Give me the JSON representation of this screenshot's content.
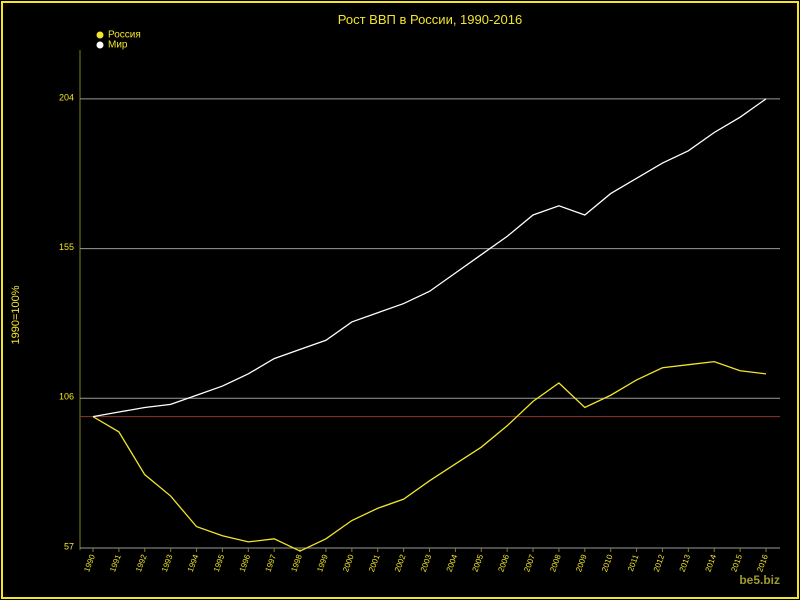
{
  "chart_data": {
    "type": "line",
    "title": "Рост ВВП в России, 1990-2016",
    "y_label": "1990=100%",
    "watermark": "be5.biz",
    "categories": [
      "1990",
      "1991",
      "1992",
      "1993",
      "1994",
      "1995",
      "1996",
      "1997",
      "1998",
      "1999",
      "2000",
      "2001",
      "2002",
      "2003",
      "2004",
      "2005",
      "2006",
      "2007",
      "2008",
      "2009",
      "2010",
      "2011",
      "2012",
      "2013",
      "2014",
      "2015",
      "2016"
    ],
    "series": [
      {
        "name": "Россия",
        "color": "#f2e52a",
        "values": [
          100,
          95,
          81,
          74,
          64,
          61,
          59,
          60,
          56,
          60,
          66,
          70,
          73,
          79,
          84.5,
          90,
          97,
          105,
          111,
          103,
          107,
          112,
          116,
          117,
          118,
          115,
          114
        ]
      },
      {
        "name": "Мир",
        "color": "#ffffff",
        "values": [
          100,
          101.5,
          103,
          104,
          107,
          110,
          114,
          119,
          122,
          125,
          131,
          134,
          137,
          141,
          147,
          153,
          159,
          166,
          169,
          166,
          173,
          178,
          183,
          187,
          193,
          198,
          204
        ]
      }
    ],
    "ylim": [
      57,
      220
    ],
    "yticks": [
      57,
      106,
      155,
      204
    ],
    "grid": true,
    "reference_line": 100,
    "legend": "top-left"
  }
}
